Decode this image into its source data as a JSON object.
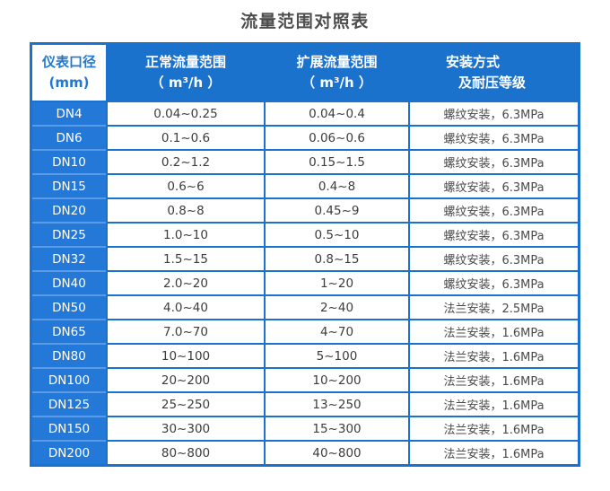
{
  "chart_data": {
    "type": "table",
    "title": "流量范围对照表",
    "columns": [
      {
        "line1": "仪表口径",
        "line2": "(mm)"
      },
      {
        "line1": "正常流量范围",
        "line2": "（ m³/h ）"
      },
      {
        "line1": "扩展流量范围",
        "line2": "（ m³/h ）"
      },
      {
        "line1": "安装方式",
        "line2": "及耐压等级"
      }
    ],
    "rows": [
      [
        "DN4",
        "0.04~0.25",
        "0.04~0.4",
        "螺纹安装，6.3MPa"
      ],
      [
        "DN6",
        "0.1~0.6",
        "0.06~0.6",
        "螺纹安装，6.3MPa"
      ],
      [
        "DN10",
        "0.2~1.2",
        "0.15~1.5",
        "螺纹安装，6.3MPa"
      ],
      [
        "DN15",
        "0.6~6",
        "0.4~8",
        "螺纹安装，6.3MPa"
      ],
      [
        "DN20",
        "0.8~8",
        "0.45~9",
        "螺纹安装，6.3MPa"
      ],
      [
        "DN25",
        "1.0~10",
        "0.5~10",
        "螺纹安装，6.3MPa"
      ],
      [
        "DN32",
        "1.5~15",
        "0.8~15",
        "螺纹安装，6.3MPa"
      ],
      [
        "DN40",
        "2.0~20",
        "1~20",
        "螺纹安装，6.3MPa"
      ],
      [
        "DN50",
        "4.0~40",
        "2~40",
        "法兰安装，2.5MPa"
      ],
      [
        "DN65",
        "7.0~70",
        "4~70",
        "法兰安装，1.6MPa"
      ],
      [
        "DN80",
        "10~100",
        "5~100",
        "法兰安装，1.6MPa"
      ],
      [
        "DN100",
        "20~200",
        "10~200",
        "法兰安装，1.6MPa"
      ],
      [
        "DN125",
        "25~250",
        "13~250",
        "法兰安装，1.6MPa"
      ],
      [
        "DN150",
        "30~300",
        "15~300",
        "法兰安装，1.6MPa"
      ],
      [
        "DN200",
        "80~800",
        "40~800",
        "法兰安装，1.6MPa"
      ]
    ],
    "colors": {
      "table_blue": "#1b72cc",
      "row_label_blue": "#2478d8",
      "row_separator_blue": "#5b9ae4",
      "header_text_blue": "#1f78d3",
      "body_text": "#3c3c3c",
      "title_text": "#4d4d4d"
    },
    "layout_hints": {
      "grid": "on",
      "header_position": "top",
      "row_label_column": "left"
    }
  }
}
